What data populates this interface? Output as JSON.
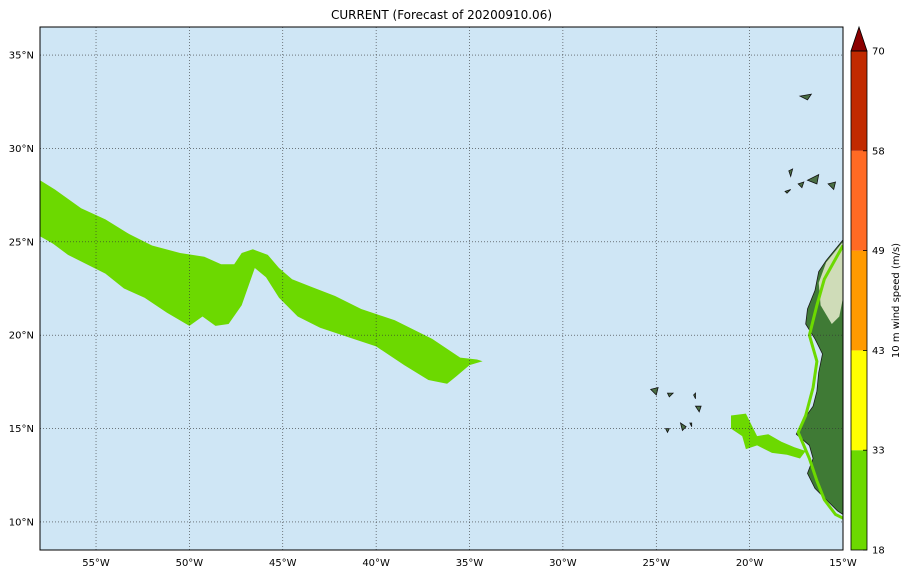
{
  "title": "CURRENT (Forecast of 20200910.06)",
  "map": {
    "lon_range": [
      -58,
      -15
    ],
    "lat_range": [
      8.5,
      36.5
    ],
    "ocean_color": "#cfe6f5",
    "gridline_style": "dotted",
    "lon_ticks": [
      {
        "value": -55,
        "label": "55°W"
      },
      {
        "value": -50,
        "label": "50°W"
      },
      {
        "value": -45,
        "label": "45°W"
      },
      {
        "value": -40,
        "label": "40°W"
      },
      {
        "value": -35,
        "label": "35°W"
      },
      {
        "value": -30,
        "label": "30°W"
      },
      {
        "value": -25,
        "label": "25°W"
      },
      {
        "value": -20,
        "label": "20°W"
      },
      {
        "value": -15,
        "label": "15°W"
      }
    ],
    "lat_ticks": [
      {
        "value": 10,
        "label": "10°N"
      },
      {
        "value": 15,
        "label": "15°N"
      },
      {
        "value": 20,
        "label": "20°N"
      },
      {
        "value": 25,
        "label": "25°N"
      },
      {
        "value": 30,
        "label": "30°N"
      },
      {
        "value": 35,
        "label": "35°N"
      }
    ],
    "wind_bands": [
      {
        "name": "band-west",
        "level": "18-33 m/s",
        "color": "#6cd900",
        "points": [
          [
            -58.0,
            28.3
          ],
          [
            -57.2,
            27.8
          ],
          [
            -55.8,
            26.8
          ],
          [
            -54.5,
            26.2
          ],
          [
            -53.2,
            25.4
          ],
          [
            -52.0,
            24.8
          ],
          [
            -50.5,
            24.4
          ],
          [
            -49.2,
            24.2
          ],
          [
            -48.3,
            23.8
          ],
          [
            -47.6,
            23.8
          ],
          [
            -47.2,
            24.4
          ],
          [
            -46.6,
            24.6
          ],
          [
            -45.8,
            24.3
          ],
          [
            -45.2,
            23.6
          ],
          [
            -44.5,
            23.0
          ],
          [
            -43.5,
            22.6
          ],
          [
            -42.2,
            22.1
          ],
          [
            -40.8,
            21.4
          ],
          [
            -39.0,
            20.8
          ],
          [
            -37.0,
            19.8
          ],
          [
            -35.5,
            18.8
          ],
          [
            -34.6,
            18.7
          ],
          [
            -34.3,
            18.6
          ],
          [
            -35.0,
            18.4
          ],
          [
            -35.7,
            17.8
          ],
          [
            -36.2,
            17.4
          ],
          [
            -37.2,
            17.6
          ],
          [
            -38.5,
            18.4
          ],
          [
            -40.0,
            19.4
          ],
          [
            -41.5,
            19.9
          ],
          [
            -43.0,
            20.4
          ],
          [
            -44.2,
            21.0
          ],
          [
            -45.2,
            22.0
          ],
          [
            -45.9,
            23.1
          ],
          [
            -46.5,
            23.6
          ],
          [
            -47.2,
            21.6
          ],
          [
            -47.9,
            20.6
          ],
          [
            -48.6,
            20.5
          ],
          [
            -49.3,
            21.0
          ],
          [
            -50.0,
            20.5
          ],
          [
            -51.2,
            21.2
          ],
          [
            -52.4,
            22.0
          ],
          [
            -53.5,
            22.5
          ],
          [
            -54.5,
            23.3
          ],
          [
            -55.5,
            23.8
          ],
          [
            -56.5,
            24.3
          ],
          [
            -57.3,
            24.9
          ],
          [
            -58.0,
            25.3
          ]
        ]
      },
      {
        "name": "band-cape-verde",
        "level": "18-33 m/s",
        "color": "#6cd900",
        "points": [
          [
            -21.0,
            15.7
          ],
          [
            -20.2,
            15.8
          ],
          [
            -19.9,
            15.2
          ],
          [
            -19.6,
            14.6
          ],
          [
            -19.0,
            14.7
          ],
          [
            -18.3,
            14.3
          ],
          [
            -17.6,
            14.0
          ],
          [
            -17.0,
            13.8
          ],
          [
            -17.3,
            13.4
          ],
          [
            -18.0,
            13.6
          ],
          [
            -18.8,
            13.7
          ],
          [
            -19.6,
            14.1
          ],
          [
            -20.2,
            13.9
          ],
          [
            -20.4,
            14.6
          ],
          [
            -21.0,
            15.0
          ]
        ]
      },
      {
        "name": "band-african-coast",
        "level": "18-33 m/s",
        "color": "#6cd900",
        "points": [
          [
            -15.0,
            24.8
          ],
          [
            -16.0,
            23.0
          ],
          [
            -16.4,
            21.6
          ],
          [
            -16.8,
            20.0
          ],
          [
            -16.4,
            18.6
          ],
          [
            -16.6,
            17.2
          ],
          [
            -17.0,
            15.7
          ],
          [
            -17.4,
            14.8
          ],
          [
            -16.8,
            13.4
          ],
          [
            -16.4,
            12.2
          ],
          [
            -16.0,
            11.2
          ],
          [
            -15.4,
            10.4
          ],
          [
            -15.0,
            10.2
          ]
        ]
      }
    ],
    "land": {
      "color": "#3f7a35",
      "desert_color": "#cfdcb8",
      "points": [
        [
          -15.0,
          25.1
        ],
        [
          -15.9,
          24.0
        ],
        [
          -16.3,
          23.4
        ],
        [
          -16.5,
          22.4
        ],
        [
          -16.9,
          21.4
        ],
        [
          -17.0,
          20.6
        ],
        [
          -16.5,
          19.8
        ],
        [
          -16.1,
          19.0
        ],
        [
          -16.3,
          18.0
        ],
        [
          -16.4,
          17.0
        ],
        [
          -16.6,
          16.2
        ],
        [
          -17.1,
          15.5
        ],
        [
          -17.5,
          14.7
        ],
        [
          -16.8,
          14.1
        ],
        [
          -16.6,
          13.4
        ],
        [
          -16.9,
          12.6
        ],
        [
          -16.5,
          11.8
        ],
        [
          -15.9,
          11.2
        ],
        [
          -15.3,
          10.6
        ],
        [
          -15.0,
          10.4
        ]
      ]
    },
    "islands": [
      {
        "name": "madeira-island",
        "points": [
          [
            -17.3,
            32.8
          ],
          [
            -16.7,
            32.9
          ],
          [
            -16.9,
            32.6
          ]
        ]
      },
      {
        "name": "canary-la-palma",
        "points": [
          [
            -17.9,
            28.8
          ],
          [
            -17.7,
            28.9
          ],
          [
            -17.8,
            28.5
          ]
        ]
      },
      {
        "name": "canary-tenerife",
        "points": [
          [
            -16.9,
            28.3
          ],
          [
            -16.3,
            28.6
          ],
          [
            -16.4,
            28.1
          ]
        ]
      },
      {
        "name": "canary-gran-canaria",
        "points": [
          [
            -15.8,
            28.1
          ],
          [
            -15.4,
            28.2
          ],
          [
            -15.5,
            27.8
          ]
        ]
      },
      {
        "name": "canary-gomera",
        "points": [
          [
            -17.4,
            28.1
          ],
          [
            -17.1,
            28.2
          ],
          [
            -17.2,
            27.9
          ]
        ]
      },
      {
        "name": "canary-hierro",
        "points": [
          [
            -18.1,
            27.7
          ],
          [
            -17.8,
            27.8
          ],
          [
            -18.0,
            27.6
          ]
        ]
      },
      {
        "name": "cape-verde-santo-antao",
        "points": [
          [
            -25.3,
            17.1
          ],
          [
            -24.9,
            17.2
          ],
          [
            -25.0,
            16.8
          ]
        ]
      },
      {
        "name": "cape-verde-sao-vicente",
        "points": [
          [
            -24.4,
            16.9
          ],
          [
            -24.1,
            16.9
          ],
          [
            -24.3,
            16.7
          ]
        ]
      },
      {
        "name": "cape-verde-sal",
        "points": [
          [
            -23.0,
            16.8
          ],
          [
            -22.9,
            16.9
          ],
          [
            -22.9,
            16.6
          ]
        ]
      },
      {
        "name": "cape-verde-boa-vista",
        "points": [
          [
            -22.9,
            16.2
          ],
          [
            -22.6,
            16.2
          ],
          [
            -22.7,
            15.9
          ]
        ]
      },
      {
        "name": "cape-verde-fogo",
        "points": [
          [
            -24.5,
            15.0
          ],
          [
            -24.3,
            15.0
          ],
          [
            -24.4,
            14.8
          ]
        ]
      },
      {
        "name": "cape-verde-santiago",
        "points": [
          [
            -23.7,
            15.3
          ],
          [
            -23.4,
            15.1
          ],
          [
            -23.6,
            14.9
          ]
        ]
      },
      {
        "name": "cape-verde-maio",
        "points": [
          [
            -23.2,
            15.3
          ],
          [
            -23.1,
            15.3
          ],
          [
            -23.1,
            15.1
          ]
        ]
      }
    ]
  },
  "colorbar": {
    "label": "10 m wind speed (m/s)",
    "levels": [
      18,
      33,
      43,
      49,
      58,
      70
    ],
    "colors": [
      "#6cd900",
      "#ffff00",
      "#ff9a00",
      "#ff6a24",
      "#c12a00"
    ],
    "extend_color": "#8b0000",
    "tick_labels": [
      "18",
      "33",
      "43",
      "49",
      "58",
      "70"
    ]
  }
}
